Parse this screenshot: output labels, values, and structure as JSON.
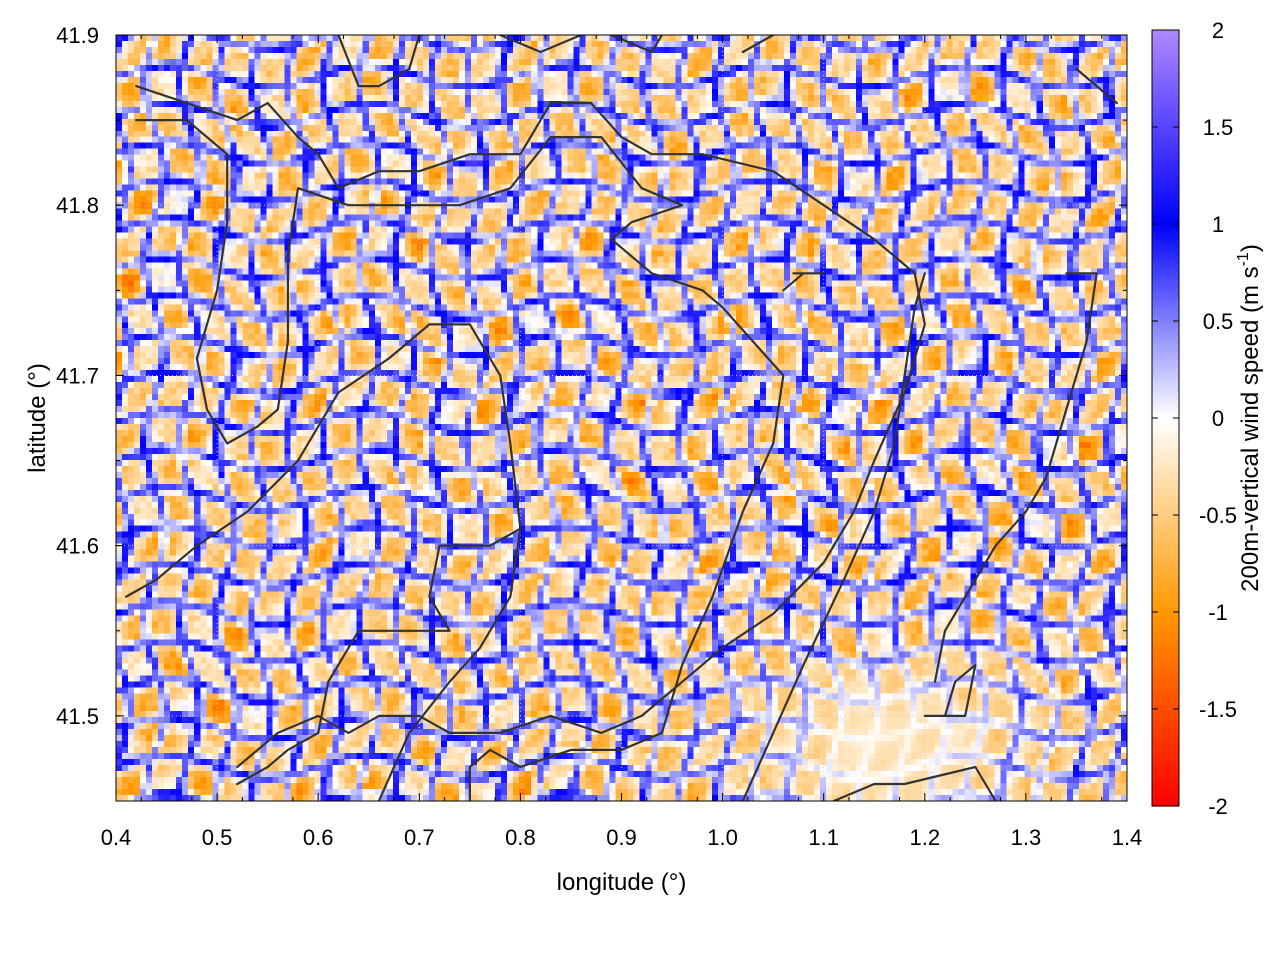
{
  "chart_data": {
    "type": "heatmap",
    "xlabel": "longitude (°)",
    "ylabel": "latitude (°)",
    "colorbar_label": "200m-vertical wind speed (m s",
    "colorbar_label_sup": "-1",
    "colorbar_label_tail": ")",
    "xlim": [
      0.4,
      1.4
    ],
    "ylim": [
      41.45,
      41.9
    ],
    "xticks": [
      "0.4",
      "0.5",
      "0.6",
      "0.7",
      "0.8",
      "0.9",
      "1.0",
      "1.1",
      "1.2",
      "1.3",
      "1.4"
    ],
    "xtick_values": [
      0.4,
      0.5,
      0.6,
      0.7,
      0.8,
      0.9,
      1.0,
      1.1,
      1.2,
      1.3,
      1.4
    ],
    "yticks": [
      "41.5",
      "41.6",
      "41.7",
      "41.8",
      "41.9"
    ],
    "ytick_values": [
      41.5,
      41.6,
      41.7,
      41.8,
      41.9
    ],
    "zlim": [
      -2,
      2
    ],
    "cbticks": [
      "2",
      "1.5",
      "1",
      "0.5",
      "0",
      "-0.5",
      "-1",
      "-1.5",
      "-2"
    ],
    "cbtick_values": [
      2,
      1.5,
      1,
      0.5,
      0,
      -0.5,
      -1,
      -1.5,
      -2
    ],
    "colorscale": [
      {
        "value": -2,
        "color": "#ff0000"
      },
      {
        "value": -1,
        "color": "#ff9900"
      },
      {
        "value": 0,
        "color": "#ffffff"
      },
      {
        "value": 1,
        "color": "#0000ff"
      },
      {
        "value": 2,
        "color": "#b088ff"
      }
    ],
    "grid": true,
    "contour_color": "#333333",
    "field_description_note": null,
    "contours": [
      [
        [
          0.42,
          41.87
        ],
        [
          0.47,
          41.86
        ],
        [
          0.52,
          41.85
        ],
        [
          0.55,
          41.86
        ],
        [
          0.58,
          41.84
        ],
        [
          0.6,
          41.83
        ],
        [
          0.62,
          41.81
        ],
        [
          0.66,
          41.82
        ],
        [
          0.7,
          41.82
        ],
        [
          0.75,
          41.83
        ],
        [
          0.8,
          41.83
        ],
        [
          0.83,
          41.86
        ],
        [
          0.87,
          41.86
        ],
        [
          0.9,
          41.84
        ],
        [
          0.93,
          41.83
        ],
        [
          0.98,
          41.83
        ],
        [
          1.05,
          41.82
        ],
        [
          1.1,
          41.8
        ],
        [
          1.15,
          41.78
        ],
        [
          1.19,
          41.76
        ],
        [
          1.2,
          41.73
        ],
        [
          1.18,
          41.69
        ],
        [
          1.15,
          41.65
        ],
        [
          1.13,
          41.62
        ],
        [
          1.1,
          41.59
        ],
        [
          1.05,
          41.56
        ],
        [
          1.0,
          41.54
        ],
        [
          0.96,
          41.52
        ],
        [
          0.92,
          41.5
        ],
        [
          0.88,
          41.49
        ],
        [
          0.83,
          41.5
        ],
        [
          0.78,
          41.49
        ],
        [
          0.73,
          41.49
        ],
        [
          0.7,
          41.5
        ],
        [
          0.66,
          41.5
        ],
        [
          0.63,
          41.49
        ],
        [
          0.6,
          41.5
        ],
        [
          0.56,
          41.49
        ],
        [
          0.52,
          41.47
        ]
      ],
      [
        [
          0.42,
          41.85
        ],
        [
          0.47,
          41.85
        ],
        [
          0.51,
          41.83
        ],
        [
          0.51,
          41.79
        ],
        [
          0.5,
          41.75
        ],
        [
          0.48,
          41.71
        ],
        [
          0.49,
          41.68
        ],
        [
          0.51,
          41.66
        ],
        [
          0.54,
          41.67
        ],
        [
          0.56,
          41.68
        ],
        [
          0.57,
          41.72
        ],
        [
          0.57,
          41.77
        ],
        [
          0.58,
          41.81
        ],
        [
          0.63,
          41.8
        ],
        [
          0.68,
          41.8
        ],
        [
          0.74,
          41.8
        ],
        [
          0.79,
          41.81
        ],
        [
          0.83,
          41.84
        ],
        [
          0.88,
          41.84
        ],
        [
          0.92,
          41.81
        ],
        [
          0.96,
          41.8
        ],
        [
          0.91,
          41.79
        ],
        [
          0.89,
          41.78
        ],
        [
          0.93,
          41.76
        ],
        [
          0.98,
          41.75
        ],
        [
          1.0,
          41.74
        ],
        [
          1.03,
          41.72
        ],
        [
          1.06,
          41.7
        ],
        [
          1.05,
          41.66
        ],
        [
          1.02,
          41.62
        ],
        [
          0.99,
          41.57
        ],
        [
          0.96,
          41.53
        ],
        [
          0.94,
          41.49
        ],
        [
          0.9,
          41.48
        ],
        [
          0.85,
          41.48
        ],
        [
          0.8,
          41.47
        ],
        [
          0.77,
          41.48
        ],
        [
          0.75,
          41.47
        ],
        [
          0.75,
          41.45
        ]
      ],
      [
        [
          0.41,
          41.57
        ],
        [
          0.44,
          41.58
        ],
        [
          0.48,
          41.6
        ],
        [
          0.53,
          41.62
        ],
        [
          0.58,
          41.65
        ],
        [
          0.62,
          41.69
        ],
        [
          0.67,
          41.71
        ],
        [
          0.71,
          41.73
        ],
        [
          0.75,
          41.73
        ],
        [
          0.78,
          41.7
        ],
        [
          0.79,
          41.66
        ],
        [
          0.8,
          41.61
        ],
        [
          0.77,
          41.6
        ],
        [
          0.72,
          41.6
        ],
        [
          0.71,
          41.57
        ],
        [
          0.73,
          41.55
        ],
        [
          0.68,
          41.55
        ],
        [
          0.64,
          41.55
        ],
        [
          0.61,
          41.52
        ],
        [
          0.6,
          41.49
        ],
        [
          0.57,
          41.48
        ],
        [
          0.55,
          41.47
        ],
        [
          0.52,
          41.46
        ]
      ],
      [
        [
          0.66,
          41.45
        ],
        [
          0.69,
          41.49
        ],
        [
          0.73,
          41.52
        ],
        [
          0.76,
          41.54
        ],
        [
          0.79,
          41.57
        ],
        [
          0.8,
          41.61
        ]
      ],
      [
        [
          1.02,
          41.45
        ],
        [
          1.05,
          41.49
        ],
        [
          1.08,
          41.53
        ],
        [
          1.12,
          41.58
        ],
        [
          1.15,
          41.62
        ],
        [
          1.17,
          41.66
        ],
        [
          1.18,
          41.7
        ],
        [
          1.19,
          41.74
        ],
        [
          1.2,
          41.76
        ]
      ],
      [
        [
          1.11,
          41.45
        ],
        [
          1.15,
          41.46
        ],
        [
          1.18,
          41.46
        ],
        [
          1.25,
          41.47
        ],
        [
          1.27,
          41.45
        ]
      ],
      [
        [
          1.2,
          41.5
        ],
        [
          1.24,
          41.5
        ],
        [
          1.25,
          41.53
        ],
        [
          1.23,
          41.52
        ],
        [
          1.22,
          41.5
        ]
      ],
      [
        [
          1.35,
          41.88
        ],
        [
          1.37,
          41.87
        ],
        [
          1.39,
          41.86
        ]
      ],
      [
        [
          1.34,
          41.76
        ],
        [
          1.37,
          41.76
        ],
        [
          1.36,
          41.72
        ],
        [
          1.34,
          41.68
        ],
        [
          1.32,
          41.64
        ],
        [
          1.3,
          41.62
        ],
        [
          1.27,
          41.6
        ],
        [
          1.25,
          41.58
        ],
        [
          1.22,
          41.55
        ],
        [
          1.21,
          41.52
        ]
      ],
      [
        [
          0.62,
          41.9
        ],
        [
          0.64,
          41.87
        ],
        [
          0.66,
          41.87
        ],
        [
          0.69,
          41.88
        ],
        [
          0.7,
          41.9
        ]
      ],
      [
        [
          0.78,
          41.9
        ],
        [
          0.82,
          41.89
        ],
        [
          0.86,
          41.9
        ]
      ],
      [
        [
          0.89,
          41.9
        ],
        [
          0.93,
          41.89
        ],
        [
          0.94,
          41.9
        ]
      ],
      [
        [
          1.02,
          41.89
        ],
        [
          1.05,
          41.9
        ]
      ],
      [
        [
          1.06,
          41.75
        ],
        [
          1.08,
          41.76
        ],
        [
          1.1,
          41.76
        ],
        [
          1.07,
          41.76
        ]
      ]
    ]
  }
}
